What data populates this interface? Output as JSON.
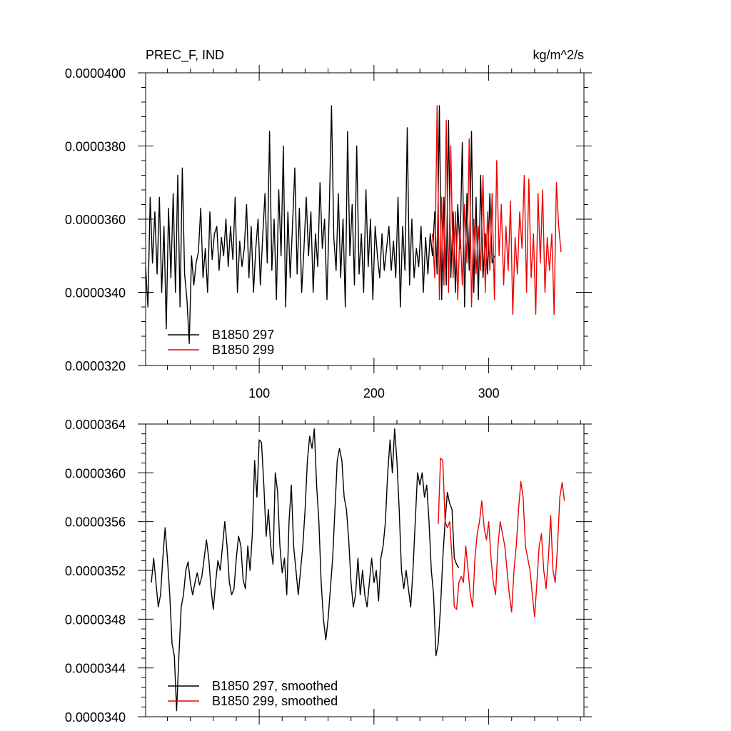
{
  "chart_data": [
    {
      "type": "line",
      "title_left": "PREC_F, IND",
      "title_right": "kg/m^2/s",
      "xlim": [
        1,
        383
      ],
      "ylim": [
        3.2e-05,
        4e-05
      ],
      "x_ticks": [
        100,
        200,
        300
      ],
      "x_tick_labels": [
        "100",
        "200",
        "300"
      ],
      "y_ticks": [
        3.2e-05,
        3.4e-05,
        3.6e-05,
        3.8e-05,
        4e-05
      ],
      "y_tick_labels": [
        "0.0000320",
        "0.0000340",
        "0.0000360",
        "0.0000380",
        "0.0000400"
      ],
      "legend": "bottom-left",
      "series": [
        {
          "name": "B1850 297",
          "color": "#000000",
          "x_start": 1,
          "x_step": 2,
          "values": [
            3.47e-05,
            3.36e-05,
            3.66e-05,
            3.48e-05,
            3.62e-05,
            3.45e-05,
            3.66e-05,
            3.4e-05,
            3.58e-05,
            3.3e-05,
            3.63e-05,
            3.44e-05,
            3.67e-05,
            3.4e-05,
            3.72e-05,
            3.36e-05,
            3.74e-05,
            3.45e-05,
            3.38e-05,
            3.26e-05,
            3.5e-05,
            3.42e-05,
            3.48e-05,
            3.51e-05,
            3.63e-05,
            3.44e-05,
            3.52e-05,
            3.4e-05,
            3.62e-05,
            3.49e-05,
            3.56e-05,
            3.58e-05,
            3.46e-05,
            3.55e-05,
            3.5e-05,
            3.6e-05,
            3.47e-05,
            3.58e-05,
            3.49e-05,
            3.66e-05,
            3.4e-05,
            3.54e-05,
            3.47e-05,
            3.52e-05,
            3.64e-05,
            3.44e-05,
            3.58e-05,
            3.4e-05,
            3.52e-05,
            3.6e-05,
            3.42e-05,
            3.55e-05,
            3.67e-05,
            3.48e-05,
            3.84e-05,
            3.46e-05,
            3.6e-05,
            3.38e-05,
            3.68e-05,
            3.5e-05,
            3.8e-05,
            3.36e-05,
            3.62e-05,
            3.44e-05,
            3.58e-05,
            3.74e-05,
            3.45e-05,
            3.63e-05,
            3.4e-05,
            3.52e-05,
            3.66e-05,
            3.5e-05,
            3.62e-05,
            3.4e-05,
            3.56e-05,
            3.47e-05,
            3.7e-05,
            3.52e-05,
            3.6e-05,
            3.38e-05,
            3.62e-05,
            3.91e-05,
            3.55e-05,
            3.46e-05,
            3.67e-05,
            3.44e-05,
            3.6e-05,
            3.36e-05,
            3.84e-05,
            3.5e-05,
            3.64e-05,
            3.42e-05,
            3.8e-05,
            3.45e-05,
            3.56e-05,
            3.4e-05,
            3.68e-05,
            3.47e-05,
            3.6e-05,
            3.38e-05,
            3.58e-05,
            3.5e-05,
            3.44e-05,
            3.56e-05,
            3.46e-05,
            3.52e-05,
            3.58e-05,
            3.46e-05,
            3.54e-05,
            3.44e-05,
            3.66e-05,
            3.36e-05,
            3.58e-05,
            3.46e-05,
            3.85e-05,
            3.42e-05,
            3.6e-05,
            3.44e-05,
            3.52e-05,
            3.47e-05,
            3.58e-05,
            3.4e-05,
            3.55e-05,
            3.45e-05,
            3.56e-05,
            3.5e-05,
            3.62e-05,
            3.45e-05,
            3.91e-05,
            3.38e-05,
            3.66e-05,
            3.42e-05,
            3.87e-05,
            3.44e-05,
            3.62e-05,
            3.4e-05,
            3.64e-05,
            3.52e-05,
            3.81e-05,
            3.36e-05,
            3.67e-05,
            3.46e-05,
            3.84e-05,
            3.4e-05,
            3.66e-05,
            3.38e-05,
            3.72e-05,
            3.44e-05,
            3.56e-05,
            3.45e-05,
            3.67e-05,
            3.48e-05,
            3.5e-05
          ]
        },
        {
          "name": "B1850 299",
          "color": "#ee0000",
          "x_start": 251,
          "x_step": 2,
          "values": [
            3.56e-05,
            3.44e-05,
            3.91e-05,
            3.38e-05,
            3.66e-05,
            3.42e-05,
            3.87e-05,
            3.4e-05,
            3.8e-05,
            3.44e-05,
            3.62e-05,
            3.38e-05,
            3.58e-05,
            3.42e-05,
            3.64e-05,
            3.48e-05,
            3.82e-05,
            3.36e-05,
            3.6e-05,
            3.45e-05,
            3.58e-05,
            3.46e-05,
            3.72e-05,
            3.4e-05,
            3.62e-05,
            3.46e-05,
            3.67e-05,
            3.38e-05,
            3.76e-05,
            3.5e-05,
            3.64e-05,
            3.42e-05,
            3.58e-05,
            3.46e-05,
            3.65e-05,
            3.34e-05,
            3.55e-05,
            3.45e-05,
            3.62e-05,
            3.52e-05,
            3.72e-05,
            3.4e-05,
            3.71e-05,
            3.44e-05,
            3.56e-05,
            3.34e-05,
            3.67e-05,
            3.48e-05,
            3.68e-05,
            3.4e-05,
            3.55e-05,
            3.46e-05,
            3.56e-05,
            3.34e-05,
            3.7e-05,
            3.58e-05,
            3.51e-05
          ]
        }
      ]
    },
    {
      "type": "line",
      "xlim": [
        1,
        383
      ],
      "ylim": [
        3.4e-05,
        3.64e-05
      ],
      "y_ticks": [
        3.4e-05,
        3.44e-05,
        3.48e-05,
        3.52e-05,
        3.56e-05,
        3.6e-05,
        3.64e-05
      ],
      "y_tick_labels": [
        "0.0000340",
        "0.0000344",
        "0.0000348",
        "0.0000352",
        "0.0000356",
        "0.0000360",
        "0.0000364"
      ],
      "legend": "bottom-left",
      "series": [
        {
          "name": "B1850 297, smoothed",
          "color": "#000000",
          "x_start": 6,
          "x_step": 2,
          "values": [
            3.51e-05,
            3.53e-05,
            3.51e-05,
            3.49e-05,
            3.5e-05,
            3.53e-05,
            3.555e-05,
            3.53e-05,
            3.5e-05,
            3.46e-05,
            3.45e-05,
            3.405e-05,
            3.45e-05,
            3.49e-05,
            3.5e-05,
            3.52e-05,
            3.527e-05,
            3.51e-05,
            3.5e-05,
            3.51e-05,
            3.518e-05,
            3.508e-05,
            3.515e-05,
            3.53e-05,
            3.545e-05,
            3.53e-05,
            3.505e-05,
            3.488e-05,
            3.51e-05,
            3.528e-05,
            3.52e-05,
            3.54e-05,
            3.56e-05,
            3.54e-05,
            3.51e-05,
            3.5e-05,
            3.505e-05,
            3.53e-05,
            3.548e-05,
            3.54e-05,
            3.512e-05,
            3.505e-05,
            3.54e-05,
            3.52e-05,
            3.55e-05,
            3.61e-05,
            3.58e-05,
            3.627e-05,
            3.625e-05,
            3.59e-05,
            3.548e-05,
            3.57e-05,
            3.54e-05,
            3.525e-05,
            3.6e-05,
            3.585e-05,
            3.54e-05,
            3.518e-05,
            3.53e-05,
            3.5e-05,
            3.56e-05,
            3.59e-05,
            3.54e-05,
            3.52e-05,
            3.5e-05,
            3.52e-05,
            3.54e-05,
            3.57e-05,
            3.61e-05,
            3.63e-05,
            3.62e-05,
            3.636e-05,
            3.59e-05,
            3.56e-05,
            3.51e-05,
            3.48e-05,
            3.463e-05,
            3.48e-05,
            3.505e-05,
            3.53e-05,
            3.57e-05,
            3.61e-05,
            3.62e-05,
            3.61e-05,
            3.58e-05,
            3.57e-05,
            3.545e-05,
            3.51e-05,
            3.49e-05,
            3.5e-05,
            3.53e-05,
            3.5e-05,
            3.52e-05,
            3.5e-05,
            3.49e-05,
            3.51e-05,
            3.53e-05,
            3.51e-05,
            3.52e-05,
            3.495e-05,
            3.53e-05,
            3.54e-05,
            3.56e-05,
            3.6e-05,
            3.627e-05,
            3.6e-05,
            3.636e-05,
            3.61e-05,
            3.57e-05,
            3.52e-05,
            3.505e-05,
            3.52e-05,
            3.505e-05,
            3.49e-05,
            3.52e-05,
            3.56e-05,
            3.6e-05,
            3.59e-05,
            3.6e-05,
            3.58e-05,
            3.59e-05,
            3.56e-05,
            3.52e-05,
            3.5e-05,
            3.45e-05,
            3.46e-05,
            3.49e-05,
            3.53e-05,
            3.56e-05,
            3.584e-05,
            3.575e-05,
            3.57e-05,
            3.53e-05,
            3.525e-05,
            3.522e-05
          ]
        },
        {
          "name": "B1850 299, smoothed",
          "color": "#ee0000",
          "x_start": 256,
          "x_step": 2,
          "values": [
            3.558e-05,
            3.612e-05,
            3.61e-05,
            3.56e-05,
            3.555e-05,
            3.56e-05,
            3.53e-05,
            3.49e-05,
            3.488e-05,
            3.51e-05,
            3.515e-05,
            3.51e-05,
            3.54e-05,
            3.52e-05,
            3.5e-05,
            3.49e-05,
            3.53e-05,
            3.55e-05,
            3.56e-05,
            3.577e-05,
            3.555e-05,
            3.545e-05,
            3.56e-05,
            3.53e-05,
            3.51e-05,
            3.5e-05,
            3.54e-05,
            3.56e-05,
            3.55e-05,
            3.54e-05,
            3.52e-05,
            3.5e-05,
            3.486e-05,
            3.52e-05,
            3.54e-05,
            3.57e-05,
            3.593e-05,
            3.58e-05,
            3.54e-05,
            3.53e-05,
            3.52e-05,
            3.5e-05,
            3.482e-05,
            3.51e-05,
            3.54e-05,
            3.55e-05,
            3.52e-05,
            3.505e-05,
            3.53e-05,
            3.565e-05,
            3.52e-05,
            3.51e-05,
            3.54e-05,
            3.58e-05,
            3.592e-05,
            3.577e-05
          ]
        }
      ]
    }
  ]
}
